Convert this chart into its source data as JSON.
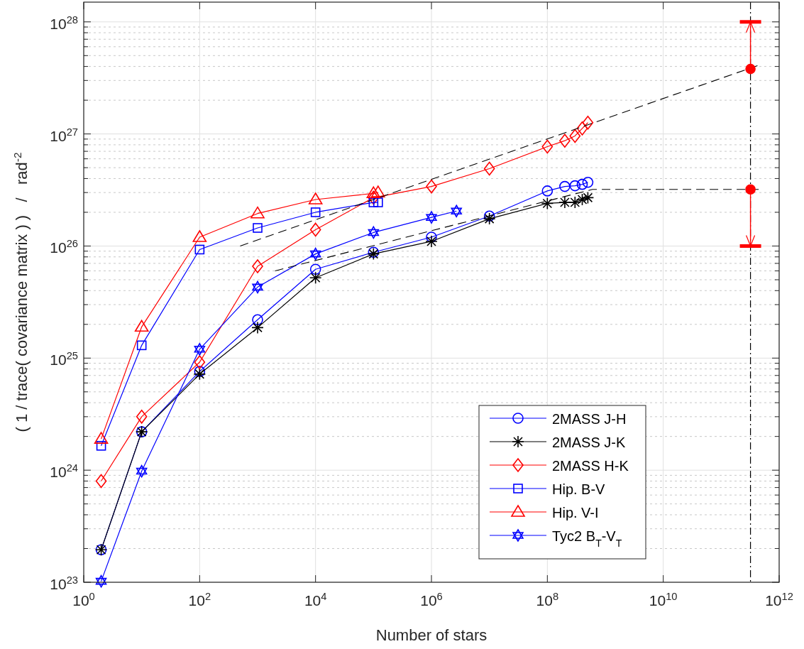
{
  "chart_data": {
    "type": "line",
    "xlabel": "Number of stars",
    "ylabel": "( 1 / trace( covariance matrix ) )   /   rad$^{-2}$",
    "log": "xy",
    "grid": true,
    "legend": "bottom right",
    "xlim": [
      1,
      1000000000000.0
    ],
    "ylim": [
      1e+23,
      1.5e+28
    ],
    "xticks": [
      {
        "value": 1,
        "label": "10$^{0}$"
      },
      {
        "value": 100,
        "label": "10$^{2}$"
      },
      {
        "value": 10000,
        "label": "10$^{4}$"
      },
      {
        "value": 1000000,
        "label": "10$^{6}$"
      },
      {
        "value": 100000000,
        "label": "10$^{8}$"
      },
      {
        "value": 10000000000,
        "label": "10$^{10}$"
      },
      {
        "value": 1000000000000,
        "label": "10$^{12}$"
      }
    ],
    "yticks": [
      {
        "value": 1e+23,
        "label": "10$^{23}$"
      },
      {
        "value": 2e+23,
        "label": null
      },
      {
        "value": 3e+23,
        "label": null
      },
      {
        "value": 4e+23,
        "label": null
      },
      {
        "value": 5e+23,
        "label": null
      },
      {
        "value": 6e+23,
        "label": null
      },
      {
        "value": 7e+23,
        "label": null
      },
      {
        "value": 8e+23,
        "label": null
      },
      {
        "value": 9e+23,
        "label": null
      },
      {
        "value": 1e+24,
        "label": "10$^{24}$"
      },
      {
        "value": 2e+24,
        "label": null
      },
      {
        "value": 3e+24,
        "label": null
      },
      {
        "value": 4e+24,
        "label": null
      },
      {
        "value": 5e+24,
        "label": null
      },
      {
        "value": 6e+24,
        "label": null
      },
      {
        "value": 7e+24,
        "label": null
      },
      {
        "value": 8e+24,
        "label": null
      },
      {
        "value": 9e+24,
        "label": null
      },
      {
        "value": 1e+25,
        "label": "10$^{25}$"
      },
      {
        "value": 2e+25,
        "label": null
      },
      {
        "value": 3e+25,
        "label": null
      },
      {
        "value": 4e+25,
        "label": null
      },
      {
        "value": 5e+25,
        "label": null
      },
      {
        "value": 6e+25,
        "label": null
      },
      {
        "value": 7e+25,
        "label": null
      },
      {
        "value": 8e+25,
        "label": null
      },
      {
        "value": 9e+25,
        "label": null
      },
      {
        "value": 1e+26,
        "label": "10$^{26}$"
      },
      {
        "value": 2e+26,
        "label": null
      },
      {
        "value": 3e+26,
        "label": null
      },
      {
        "value": 4e+26,
        "label": null
      },
      {
        "value": 5e+26,
        "label": null
      },
      {
        "value": 6e+26,
        "label": null
      },
      {
        "value": 7e+26,
        "label": null
      },
      {
        "value": 8e+26,
        "label": null
      },
      {
        "value": 9e+26,
        "label": null
      },
      {
        "value": 1e+27,
        "label": "10$^{27}$"
      },
      {
        "value": 2e+27,
        "label": null
      },
      {
        "value": 3e+27,
        "label": null
      },
      {
        "value": 4e+27,
        "label": null
      },
      {
        "value": 5e+27,
        "label": null
      },
      {
        "value": 6e+27,
        "label": null
      },
      {
        "value": 7e+27,
        "label": null
      },
      {
        "value": 8e+27,
        "label": null
      },
      {
        "value": 9e+27,
        "label": null
      },
      {
        "value": 1e+28,
        "label": "10$^{28}$"
      }
    ],
    "ref_lines": [
      {
        "axis": "x",
        "value": 320000000000.0,
        "label": null,
        "color": "#000000",
        "line_style": "dashdot"
      }
    ],
    "series": [
      {
        "name": "2MASS J-H",
        "color": "#0000ff",
        "marker": "circle",
        "x": [
          2,
          10,
          100,
          1000,
          10000,
          100000,
          1000000,
          10000000,
          100000000,
          200000000,
          300000000,
          400000000,
          500000000
        ],
        "values": [
          1.95e+23,
          2.2e+24,
          7.6e+24,
          2.2e+25,
          6.2e+25,
          8.8e+25,
          1.2e+26,
          1.85e+26,
          3.1e+26,
          3.4e+26,
          3.45e+26,
          3.55e+26,
          3.7e+26
        ]
      },
      {
        "name": "2MASS J-K",
        "color": "#000000",
        "marker": "cross",
        "x": [
          2,
          10,
          100,
          1000,
          10000,
          100000,
          1000000,
          10000000,
          100000000,
          200000000,
          300000000,
          400000000,
          500000000
        ],
        "values": [
          1.95e+23,
          2.2e+24,
          7.2e+24,
          1.87e+25,
          5.2e+25,
          8.5e+25,
          1.1e+26,
          1.75e+26,
          2.4e+26,
          2.45e+26,
          2.45e+26,
          2.6e+26,
          2.7e+26
        ]
      },
      {
        "name": "2MASS H-K",
        "color": "#ff0000",
        "marker": "diamond",
        "x": [
          2,
          10,
          100,
          1000,
          10000,
          100000,
          1000000,
          10000000,
          100000000,
          200000000,
          300000000,
          400000000,
          500000000
        ],
        "values": [
          8e+23,
          3e+24,
          9.2e+24,
          6.6e+25,
          1.4e+26,
          2.7e+26,
          3.4e+26,
          4.9e+26,
          7.7e+26,
          8.7e+26,
          9.6e+26,
          1.12e+27,
          1.26e+27
        ]
      },
      {
        "name": "Hip. B-V",
        "color": "#0000ff",
        "marker": "square",
        "x": [
          2,
          10,
          100,
          1000,
          10000,
          100000,
          120000
        ],
        "values": [
          1.65e+24,
          1.3e+25,
          9.3e+25,
          1.45e+26,
          2e+26,
          2.45e+26,
          2.45e+26
        ]
      },
      {
        "name": "Hip. V-I",
        "color": "#ff0000",
        "marker": "triangle",
        "x": [
          2,
          10,
          100,
          1000,
          10000,
          100000,
          120000
        ],
        "values": [
          1.9e+24,
          1.9e+25,
          1.2e+26,
          1.95e+26,
          2.6e+26,
          2.95e+26,
          3e+26
        ]
      },
      {
        "name": "Tyc2 B$_{T}$-V$_{T}$",
        "color": "#0000ff",
        "marker": "star",
        "x": [
          2,
          10,
          100,
          1000,
          10000,
          100000,
          1000000,
          2700000
        ],
        "values": [
          1.02e+23,
          9.8e+23,
          1.2e+25,
          4.3e+25,
          8.5e+25,
          1.32e+26,
          1.8e+26,
          2.05e+26
        ]
      },
      {
        "color": "#000000",
        "marker": "none",
        "line_style": "dashed",
        "x": [
          500,
          440000000000
        ],
        "values": [
          1e+26,
          4.1e+27
        ]
      },
      {
        "color": "#000000",
        "marker": "none",
        "line_style": "dashed",
        "x": [
          2000,
          600000000,
          450000000000
        ],
        "values": [
          6e+25,
          3.2e+26,
          3.2e+26
        ]
      },
      {
        "type": "scatter",
        "color": "#ff0000",
        "marker": "circle",
        "x": [
          320000000000,
          320000000000
        ],
        "values": [
          3.8e+27,
          3.2e+26
        ],
        "errors": [
          [
            3.8e+27,
            1e+28
          ],
          [
            1e+26,
            3.2e+26
          ]
        ]
      }
    ]
  }
}
